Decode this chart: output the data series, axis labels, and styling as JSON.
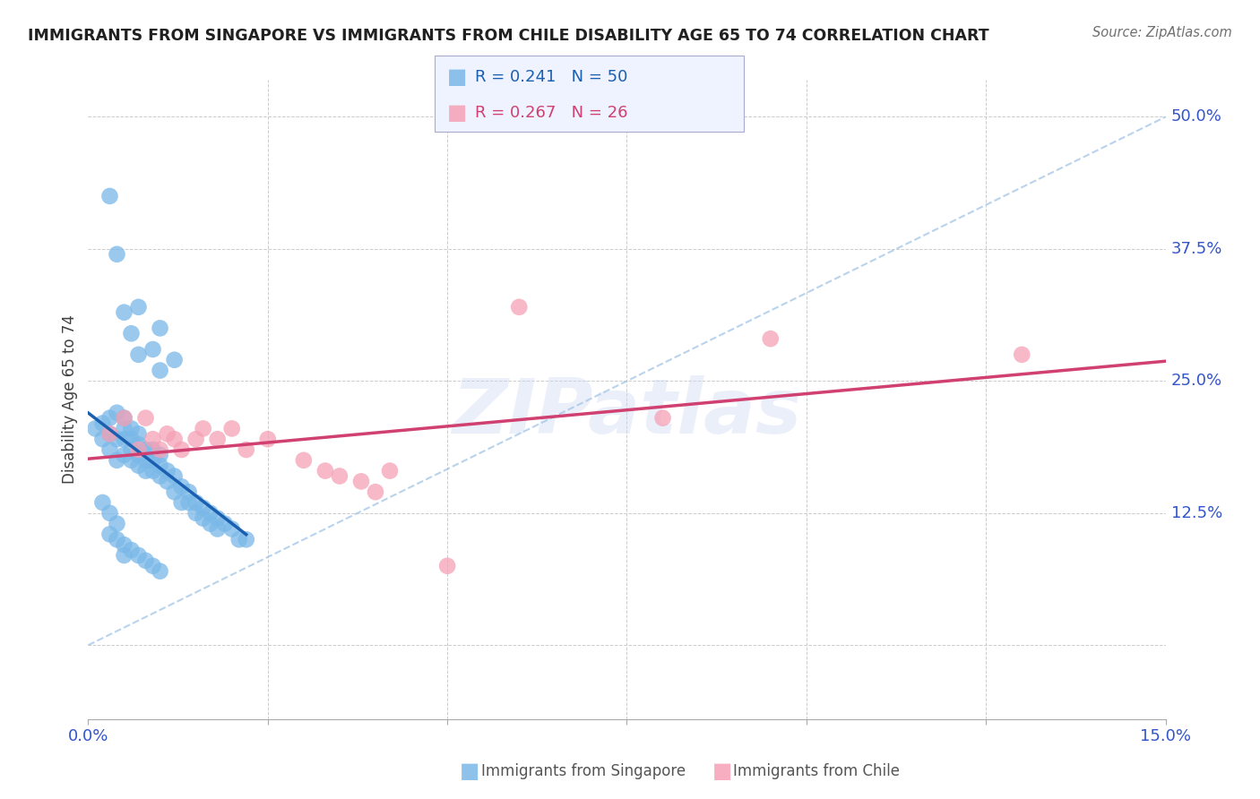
{
  "title": "IMMIGRANTS FROM SINGAPORE VS IMMIGRANTS FROM CHILE DISABILITY AGE 65 TO 74 CORRELATION CHART",
  "source": "Source: ZipAtlas.com",
  "ylabel": "Disability Age 65 to 74",
  "xlim": [
    0.0,
    0.15
  ],
  "ylim": [
    -0.07,
    0.535
  ],
  "singapore_R": 0.241,
  "singapore_N": 50,
  "chile_R": 0.267,
  "chile_N": 26,
  "singapore_color": "#7ab8e8",
  "chile_color": "#f5a0b5",
  "singapore_line_color": "#1a5fb0",
  "chile_line_color": "#d04070",
  "ref_line_color": "#a8c8e8",
  "watermark": "ZIPatlas",
  "background_color": "#ffffff",
  "grid_color": "#cccccc",
  "singapore_x": [
    0.001,
    0.002,
    0.002,
    0.003,
    0.003,
    0.003,
    0.004,
    0.004,
    0.004,
    0.005,
    0.005,
    0.005,
    0.005,
    0.006,
    0.006,
    0.006,
    0.006,
    0.007,
    0.007,
    0.007,
    0.007,
    0.008,
    0.008,
    0.008,
    0.009,
    0.009,
    0.009,
    0.01,
    0.01,
    0.01,
    0.011,
    0.011,
    0.012,
    0.012,
    0.013,
    0.013,
    0.014,
    0.014,
    0.015,
    0.015,
    0.016,
    0.016,
    0.017,
    0.017,
    0.018,
    0.018,
    0.019,
    0.02,
    0.021,
    0.022
  ],
  "singapore_y": [
    0.205,
    0.195,
    0.21,
    0.185,
    0.2,
    0.215,
    0.175,
    0.195,
    0.22,
    0.18,
    0.195,
    0.205,
    0.215,
    0.175,
    0.185,
    0.195,
    0.205,
    0.17,
    0.18,
    0.19,
    0.2,
    0.165,
    0.175,
    0.185,
    0.165,
    0.175,
    0.185,
    0.16,
    0.17,
    0.18,
    0.155,
    0.165,
    0.145,
    0.16,
    0.135,
    0.15,
    0.135,
    0.145,
    0.125,
    0.135,
    0.12,
    0.13,
    0.115,
    0.125,
    0.11,
    0.12,
    0.115,
    0.11,
    0.1,
    0.1
  ],
  "singapore_extra_high": [
    [
      0.003,
      0.425
    ],
    [
      0.004,
      0.37
    ],
    [
      0.005,
      0.315
    ],
    [
      0.006,
      0.295
    ],
    [
      0.007,
      0.275
    ],
    [
      0.007,
      0.32
    ],
    [
      0.009,
      0.28
    ],
    [
      0.01,
      0.26
    ],
    [
      0.01,
      0.3
    ],
    [
      0.012,
      0.27
    ]
  ],
  "singapore_low": [
    [
      0.002,
      0.135
    ],
    [
      0.003,
      0.125
    ],
    [
      0.003,
      0.105
    ],
    [
      0.004,
      0.115
    ],
    [
      0.004,
      0.1
    ],
    [
      0.005,
      0.095
    ],
    [
      0.005,
      0.085
    ],
    [
      0.006,
      0.09
    ],
    [
      0.007,
      0.085
    ],
    [
      0.008,
      0.08
    ],
    [
      0.009,
      0.075
    ],
    [
      0.01,
      0.07
    ]
  ],
  "chile_x": [
    0.003,
    0.005,
    0.007,
    0.008,
    0.009,
    0.01,
    0.011,
    0.012,
    0.013,
    0.015,
    0.016,
    0.018,
    0.02,
    0.022,
    0.025,
    0.03,
    0.033,
    0.035,
    0.038,
    0.04,
    0.042,
    0.05,
    0.06,
    0.08,
    0.095,
    0.13
  ],
  "chile_y": [
    0.2,
    0.215,
    0.185,
    0.215,
    0.195,
    0.185,
    0.2,
    0.195,
    0.185,
    0.195,
    0.205,
    0.195,
    0.205,
    0.185,
    0.195,
    0.175,
    0.165,
    0.16,
    0.155,
    0.145,
    0.165,
    0.075,
    0.32,
    0.215,
    0.29,
    0.275
  ]
}
